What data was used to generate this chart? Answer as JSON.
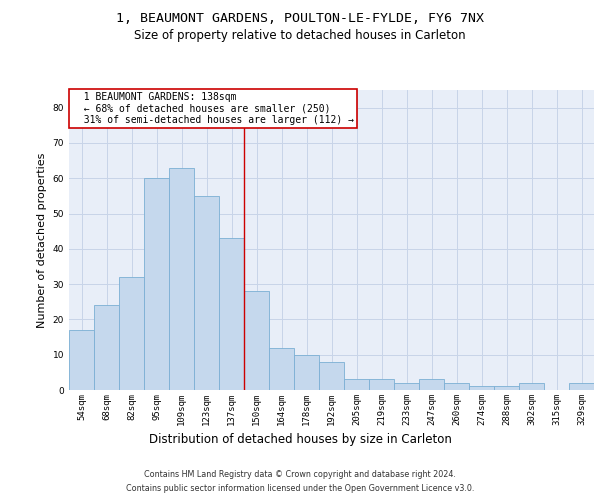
{
  "title_line1": "1, BEAUMONT GARDENS, POULTON-LE-FYLDE, FY6 7NX",
  "title_line2": "Size of property relative to detached houses in Carleton",
  "xlabel": "Distribution of detached houses by size in Carleton",
  "ylabel": "Number of detached properties",
  "categories": [
    "54sqm",
    "68sqm",
    "82sqm",
    "95sqm",
    "109sqm",
    "123sqm",
    "137sqm",
    "150sqm",
    "164sqm",
    "178sqm",
    "192sqm",
    "205sqm",
    "219sqm",
    "233sqm",
    "247sqm",
    "260sqm",
    "274sqm",
    "288sqm",
    "302sqm",
    "315sqm",
    "329sqm"
  ],
  "values": [
    17,
    24,
    32,
    60,
    63,
    55,
    43,
    28,
    12,
    10,
    8,
    3,
    3,
    2,
    3,
    2,
    1,
    1,
    2,
    0,
    2
  ],
  "bar_color": "#c5d8ed",
  "bar_edge_color": "#7bafd4",
  "grid_color": "#c8d4e8",
  "background_color": "#e8eef8",
  "annotation_box_text": "  1 BEAUMONT GARDENS: 138sqm\n  ← 68% of detached houses are smaller (250)\n  31% of semi-detached houses are larger (112) →",
  "annotation_box_color": "#ffffff",
  "annotation_box_edge_color": "#cc0000",
  "vline_x": 6.5,
  "vline_color": "#cc0000",
  "ylim": [
    0,
    85
  ],
  "yticks": [
    0,
    10,
    20,
    30,
    40,
    50,
    60,
    70,
    80
  ],
  "footer_line1": "Contains HM Land Registry data © Crown copyright and database right 2024.",
  "footer_line2": "Contains public sector information licensed under the Open Government Licence v3.0.",
  "title_fontsize": 9.5,
  "subtitle_fontsize": 8.5,
  "tick_fontsize": 6.5,
  "ylabel_fontsize": 8,
  "xlabel_fontsize": 8.5,
  "footer_fontsize": 5.8
}
